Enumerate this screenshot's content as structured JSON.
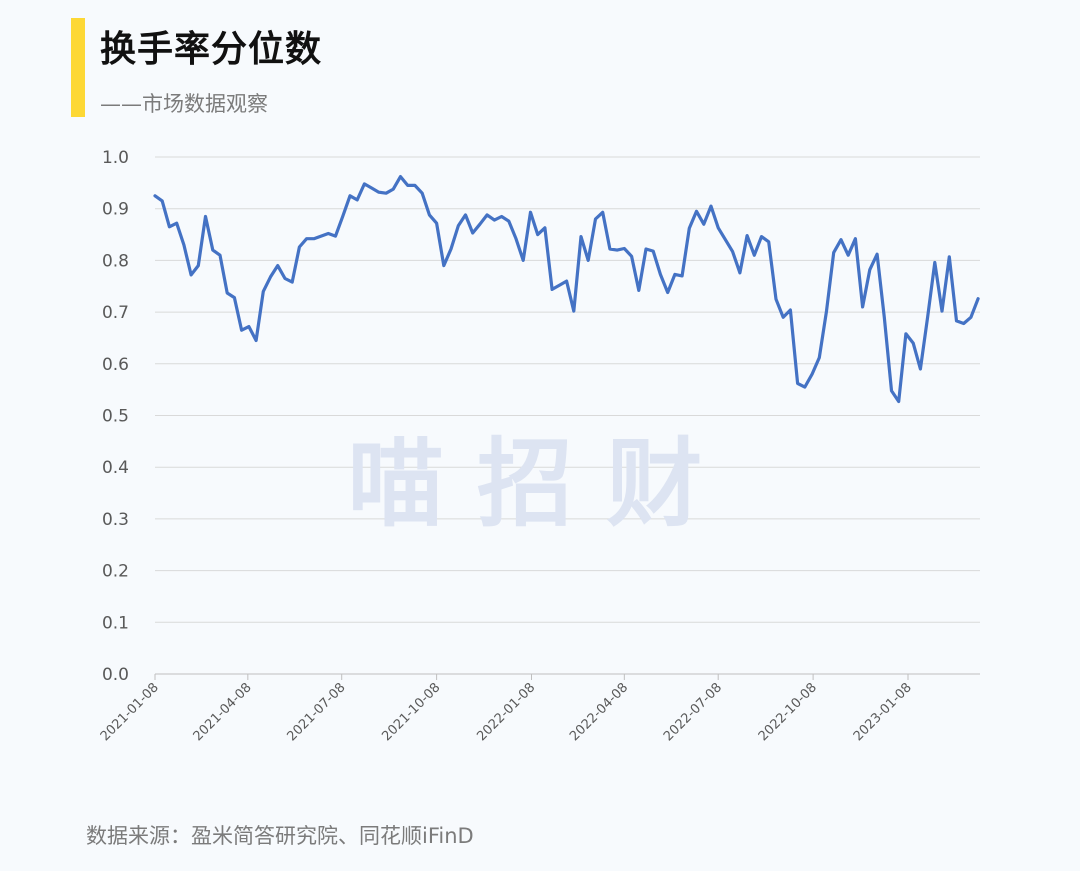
{
  "header": {
    "title": "换手率分位数",
    "subtitle": "——市场数据观察"
  },
  "watermark": "喵 招 财",
  "source": "数据来源：盈米简答研究院、同花顺iFinD",
  "colors": {
    "accent": "#fdd835",
    "line": "#4472c4",
    "grid": "#d9d9d9",
    "axis_text": "#595959",
    "watermark": "#dde4f2"
  },
  "chart_data": {
    "type": "line",
    "title": "换手率分位数",
    "xlabel": "",
    "ylabel": "",
    "ylim": [
      0,
      1
    ],
    "yticks": [
      "0.0",
      "0.1",
      "0.2",
      "0.3",
      "0.4",
      "0.5",
      "0.6",
      "0.7",
      "0.8",
      "0.9",
      "1.0"
    ],
    "xticks": [
      "2021-01-08",
      "2021-04-08",
      "2021-07-08",
      "2021-10-08",
      "2022-01-08",
      "2022-04-08",
      "2022-07-08",
      "2022-10-08",
      "2023-01-08"
    ],
    "grid": true,
    "legend": "none",
    "x": [
      "2021-01-08",
      "2021-01-15",
      "2021-01-22",
      "2021-01-29",
      "2021-02-05",
      "2021-02-12",
      "2021-02-19",
      "2021-02-26",
      "2021-03-05",
      "2021-03-12",
      "2021-03-19",
      "2021-03-26",
      "2021-04-02",
      "2021-04-09",
      "2021-04-16",
      "2021-04-23",
      "2021-04-30",
      "2021-05-07",
      "2021-05-14",
      "2021-05-21",
      "2021-05-28",
      "2021-06-04",
      "2021-06-11",
      "2021-06-18",
      "2021-06-25",
      "2021-07-02",
      "2021-07-09",
      "2021-07-16",
      "2021-07-23",
      "2021-07-30",
      "2021-08-06",
      "2021-08-13",
      "2021-08-20",
      "2021-08-27",
      "2021-09-03",
      "2021-09-10",
      "2021-09-17",
      "2021-09-24",
      "2021-10-01",
      "2021-10-08",
      "2021-10-15",
      "2021-10-22",
      "2021-10-29",
      "2021-11-05",
      "2021-11-12",
      "2021-11-19",
      "2021-11-26",
      "2021-12-03",
      "2021-12-10",
      "2021-12-17",
      "2021-12-24",
      "2021-12-31",
      "2022-01-07",
      "2022-01-14",
      "2022-01-21",
      "2022-01-28",
      "2022-02-04",
      "2022-02-11",
      "2022-02-18",
      "2022-02-25",
      "2022-03-04",
      "2022-03-11",
      "2022-03-18",
      "2022-03-25",
      "2022-04-01",
      "2022-04-08",
      "2022-04-15",
      "2022-04-22",
      "2022-04-29",
      "2022-05-06",
      "2022-05-13",
      "2022-05-20",
      "2022-05-27",
      "2022-06-03",
      "2022-06-10",
      "2022-06-17",
      "2022-06-24",
      "2022-07-01",
      "2022-07-08",
      "2022-07-15",
      "2022-07-22",
      "2022-07-29",
      "2022-08-05",
      "2022-08-12",
      "2022-08-19",
      "2022-08-26",
      "2022-09-02",
      "2022-09-09",
      "2022-09-16",
      "2022-09-23",
      "2022-09-30",
      "2022-10-07",
      "2022-10-14",
      "2022-10-21",
      "2022-10-28",
      "2022-11-04",
      "2022-11-11",
      "2022-11-18",
      "2022-11-25",
      "2022-12-02",
      "2022-12-09",
      "2022-12-16",
      "2022-12-23",
      "2022-12-30",
      "2023-01-06",
      "2023-01-13",
      "2023-01-20",
      "2023-01-27",
      "2023-02-03",
      "2023-02-10",
      "2023-02-17",
      "2023-02-24",
      "2023-03-03",
      "2023-03-10",
      "2023-03-17"
    ],
    "series": [
      {
        "values": [
          0.925,
          0.915,
          0.865,
          0.872,
          0.83,
          0.772,
          0.79,
          0.885,
          0.82,
          0.81,
          0.737,
          0.728,
          0.665,
          0.672,
          0.645,
          0.74,
          0.768,
          0.79,
          0.765,
          0.758,
          0.826,
          0.842,
          0.842,
          0.847,
          0.852,
          0.847,
          0.885,
          0.925,
          0.917,
          0.948,
          0.94,
          0.932,
          0.93,
          0.938,
          0.962,
          0.945,
          0.945,
          0.93,
          0.888,
          0.872,
          0.79,
          0.822,
          0.867,
          0.888,
          0.853,
          0.87,
          0.888,
          0.878,
          0.885,
          0.876,
          0.842,
          0.8,
          0.893,
          0.85,
          0.863,
          0.744,
          0.752,
          0.76,
          0.702,
          0.846,
          0.8,
          0.88,
          0.893,
          0.822,
          0.82,
          0.823,
          0.808,
          0.742,
          0.822,
          0.818,
          0.773,
          0.738,
          0.773,
          0.77,
          0.862,
          0.895,
          0.87,
          0.905,
          0.863,
          0.84,
          0.817,
          0.776,
          0.848,
          0.81,
          0.846,
          0.836,
          0.725,
          0.69,
          0.704,
          0.562,
          0.555,
          0.58,
          0.612,
          0.702,
          0.815,
          0.84,
          0.81,
          0.842,
          0.71,
          0.782,
          0.812,
          0.69,
          0.548,
          0.527,
          0.658,
          0.64,
          0.59,
          0.69,
          0.796,
          0.702,
          0.807,
          0.683,
          0.678,
          0.69,
          0.726
        ]
      }
    ]
  }
}
